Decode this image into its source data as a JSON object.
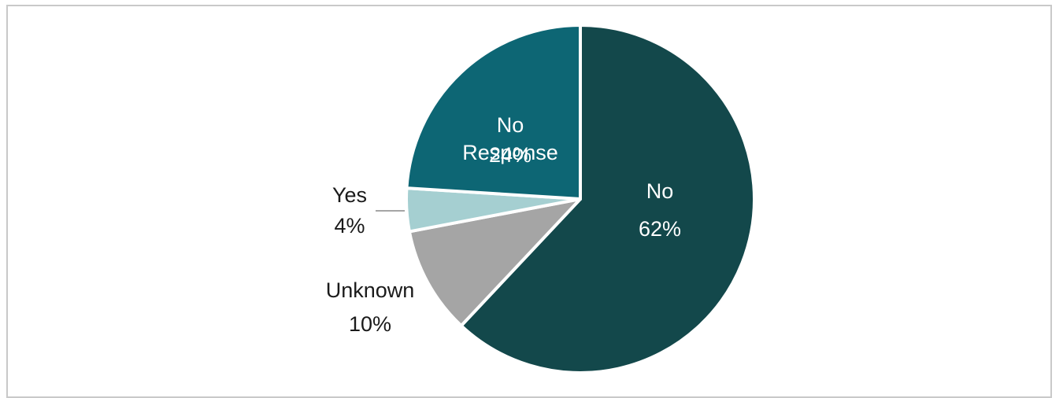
{
  "chart_data": {
    "type": "pie",
    "title": "",
    "slices": [
      {
        "label": "No",
        "value": 62,
        "pct_text": "62%",
        "color": "#13484b"
      },
      {
        "label": "Unknown",
        "value": 10,
        "pct_text": "10%",
        "color": "#a5a5a5"
      },
      {
        "label": "Yes",
        "value": 4,
        "pct_text": "4%",
        "color": "#a5cfd1"
      },
      {
        "label": "No Response",
        "value": 24,
        "pct_text": "24%",
        "color": "#0d6674"
      }
    ],
    "start_angle_deg": 0,
    "direction": "clockwise",
    "legend": "none",
    "labels": {
      "no_line1": "No",
      "no_line2": "62%",
      "nr_line1": "No",
      "nr_line2": "Response",
      "nr_line3": "24%",
      "yes_line1": "Yes",
      "yes_line2": "4%",
      "unk_line1": "Unknown",
      "unk_line2": "10%"
    }
  }
}
